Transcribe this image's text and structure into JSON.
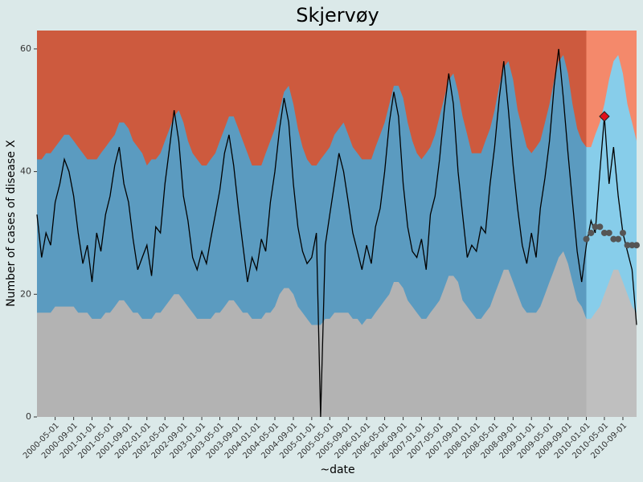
{
  "chart_data": {
    "type": "surveillance",
    "title": "Skjervøy",
    "x_label": "~date",
    "y_label": "Number of cases of disease X",
    "ylim": [
      0,
      63
    ],
    "yticks": [
      0,
      20,
      40,
      60
    ],
    "xlim": [
      "2000-01-01",
      "2010-12-01"
    ],
    "xticks": [
      "2000-05-01",
      "2000-09-01",
      "2001-01-01",
      "2001-05-01",
      "2001-09-01",
      "2002-01-01",
      "2002-05-01",
      "2002-09-01",
      "2003-01-01",
      "2003-05-01",
      "2003-09-01",
      "2004-01-01",
      "2004-05-01",
      "2004-09-01",
      "2005-01-01",
      "2005-05-01",
      "2005-09-01",
      "2006-01-01",
      "2006-05-01",
      "2006-09-01",
      "2007-01-01",
      "2007-05-01",
      "2007-09-01",
      "2008-01-01",
      "2008-05-01",
      "2008-09-01",
      "2009-01-01",
      "2009-05-01",
      "2009-09-01",
      "2010-01-01",
      "2010-05-01",
      "2010-09-01"
    ],
    "grid": false,
    "shade_from": "2010-01-01",
    "background_color": "#cd5a3e",
    "background_shade_color": "#f4896b",
    "x": [
      "2000-01-01",
      "2000-02-01",
      "2000-03-01",
      "2000-04-01",
      "2000-05-01",
      "2000-06-01",
      "2000-07-01",
      "2000-08-01",
      "2000-09-01",
      "2000-10-01",
      "2000-11-01",
      "2000-12-01",
      "2001-01-01",
      "2001-02-01",
      "2001-03-01",
      "2001-04-01",
      "2001-05-01",
      "2001-06-01",
      "2001-07-01",
      "2001-08-01",
      "2001-09-01",
      "2001-10-01",
      "2001-11-01",
      "2001-12-01",
      "2002-01-01",
      "2002-02-01",
      "2002-03-01",
      "2002-04-01",
      "2002-05-01",
      "2002-06-01",
      "2002-07-01",
      "2002-08-01",
      "2002-09-01",
      "2002-10-01",
      "2002-11-01",
      "2002-12-01",
      "2003-01-01",
      "2003-02-01",
      "2003-03-01",
      "2003-04-01",
      "2003-05-01",
      "2003-06-01",
      "2003-07-01",
      "2003-08-01",
      "2003-09-01",
      "2003-10-01",
      "2003-11-01",
      "2003-12-01",
      "2004-01-01",
      "2004-02-01",
      "2004-03-01",
      "2004-04-01",
      "2004-05-01",
      "2004-06-01",
      "2004-07-01",
      "2004-08-01",
      "2004-09-01",
      "2004-10-01",
      "2004-11-01",
      "2004-12-01",
      "2005-01-01",
      "2005-02-01",
      "2005-03-01",
      "2005-04-01",
      "2005-05-01",
      "2005-06-01",
      "2005-07-01",
      "2005-08-01",
      "2005-09-01",
      "2005-10-01",
      "2005-11-01",
      "2005-12-01",
      "2006-01-01",
      "2006-02-01",
      "2006-03-01",
      "2006-04-01",
      "2006-05-01",
      "2006-06-01",
      "2006-07-01",
      "2006-08-01",
      "2006-09-01",
      "2006-10-01",
      "2006-11-01",
      "2006-12-01",
      "2007-01-01",
      "2007-02-01",
      "2007-03-01",
      "2007-04-01",
      "2007-05-01",
      "2007-06-01",
      "2007-07-01",
      "2007-08-01",
      "2007-09-01",
      "2007-10-01",
      "2007-11-01",
      "2007-12-01",
      "2008-01-01",
      "2008-02-01",
      "2008-03-01",
      "2008-04-01",
      "2008-05-01",
      "2008-06-01",
      "2008-07-01",
      "2008-08-01",
      "2008-09-01",
      "2008-10-01",
      "2008-11-01",
      "2008-12-01",
      "2009-01-01",
      "2009-02-01",
      "2009-03-01",
      "2009-04-01",
      "2009-05-01",
      "2009-06-01",
      "2009-07-01",
      "2009-08-01",
      "2009-09-01",
      "2009-10-01",
      "2009-11-01",
      "2009-12-01",
      "2010-01-01",
      "2010-02-01",
      "2010-03-01",
      "2010-04-01",
      "2010-05-01",
      "2010-06-01",
      "2010-07-01",
      "2010-08-01",
      "2010-09-01",
      "2010-10-01",
      "2010-11-01",
      "2010-12-01"
    ],
    "upper_band": {
      "color": "#5b9bc0",
      "shade_color": "#87cdea",
      "values": [
        42,
        42,
        43,
        43,
        44,
        45,
        46,
        46,
        45,
        44,
        43,
        42,
        42,
        42,
        43,
        44,
        45,
        46,
        48,
        48,
        47,
        45,
        44,
        43,
        41,
        42,
        42,
        43,
        45,
        47,
        49,
        50,
        48,
        45,
        43,
        42,
        41,
        41,
        42,
        43,
        45,
        47,
        49,
        49,
        47,
        45,
        43,
        41,
        41,
        41,
        43,
        45,
        47,
        50,
        53,
        54,
        51,
        47,
        44,
        42,
        41,
        41,
        42,
        43,
        44,
        46,
        47,
        48,
        46,
        44,
        43,
        42,
        42,
        42,
        44,
        46,
        48,
        51,
        54,
        54,
        52,
        48,
        45,
        43,
        42,
        43,
        44,
        46,
        49,
        52,
        55,
        56,
        53,
        49,
        46,
        43,
        43,
        43,
        45,
        47,
        50,
        54,
        57,
        58,
        55,
        50,
        47,
        44,
        43,
        44,
        45,
        48,
        51,
        55,
        58,
        59,
        56,
        51,
        47,
        45,
        44,
        44,
        46,
        48,
        51,
        55,
        58,
        59,
        56,
        51,
        48,
        45
      ]
    },
    "lower_band": {
      "color": "#b3b3b3",
      "shade_color": "#bfbfbf",
      "values": [
        17,
        17,
        17,
        17,
        18,
        18,
        18,
        18,
        18,
        17,
        17,
        17,
        16,
        16,
        16,
        17,
        17,
        18,
        19,
        19,
        18,
        17,
        17,
        16,
        16,
        16,
        17,
        17,
        18,
        19,
        20,
        20,
        19,
        18,
        17,
        16,
        16,
        16,
        16,
        17,
        17,
        18,
        19,
        19,
        18,
        17,
        17,
        16,
        16,
        16,
        17,
        17,
        18,
        20,
        21,
        21,
        20,
        18,
        17,
        16,
        15,
        15,
        15,
        16,
        16,
        17,
        17,
        17,
        17,
        16,
        16,
        15,
        16,
        16,
        17,
        18,
        19,
        20,
        22,
        22,
        21,
        19,
        18,
        17,
        16,
        16,
        17,
        18,
        19,
        21,
        23,
        23,
        22,
        19,
        18,
        17,
        16,
        16,
        17,
        18,
        20,
        22,
        24,
        24,
        22,
        20,
        18,
        17,
        17,
        17,
        18,
        20,
        22,
        24,
        26,
        27,
        25,
        22,
        19,
        18,
        16,
        16,
        17,
        18,
        20,
        22,
        24,
        24,
        22,
        20,
        18,
        17
      ]
    },
    "cases": {
      "color": "#000000",
      "values": [
        33,
        26,
        30,
        28,
        35,
        38,
        42,
        40,
        36,
        30,
        25,
        28,
        22,
        30,
        27,
        33,
        36,
        41,
        44,
        38,
        35,
        29,
        24,
        26,
        28,
        23,
        31,
        30,
        38,
        44,
        50,
        45,
        36,
        32,
        26,
        24,
        27,
        25,
        29,
        33,
        37,
        43,
        46,
        41,
        34,
        28,
        22,
        26,
        24,
        29,
        27,
        35,
        40,
        47,
        52,
        48,
        38,
        31,
        27,
        25,
        26,
        30,
        0,
        28,
        33,
        38,
        43,
        40,
        35,
        30,
        27,
        24,
        28,
        25,
        31,
        34,
        40,
        48,
        53,
        49,
        38,
        31,
        27,
        26,
        29,
        24,
        33,
        36,
        42,
        50,
        56,
        51,
        40,
        33,
        26,
        28,
        27,
        31,
        30,
        38,
        44,
        52,
        58,
        50,
        41,
        34,
        28,
        25,
        30,
        26,
        34,
        39,
        45,
        54,
        60,
        52,
        43,
        35,
        27,
        22,
        28,
        32,
        30,
        40,
        49,
        38,
        44,
        36,
        30,
        27,
        24,
        15
      ]
    },
    "forecast": {
      "color": "#555555",
      "x": [
        "2010-01-01",
        "2010-02-01",
        "2010-03-01",
        "2010-04-01",
        "2010-05-01",
        "2010-06-01",
        "2010-07-01",
        "2010-08-01",
        "2010-09-01",
        "2010-10-01",
        "2010-11-01",
        "2010-12-01"
      ],
      "values": [
        29,
        30,
        31,
        31,
        30,
        30,
        29,
        29,
        30,
        28,
        28,
        28
      ]
    },
    "alarm": {
      "color": "#e0101c",
      "x": "2010-05-01",
      "value": 49
    }
  }
}
